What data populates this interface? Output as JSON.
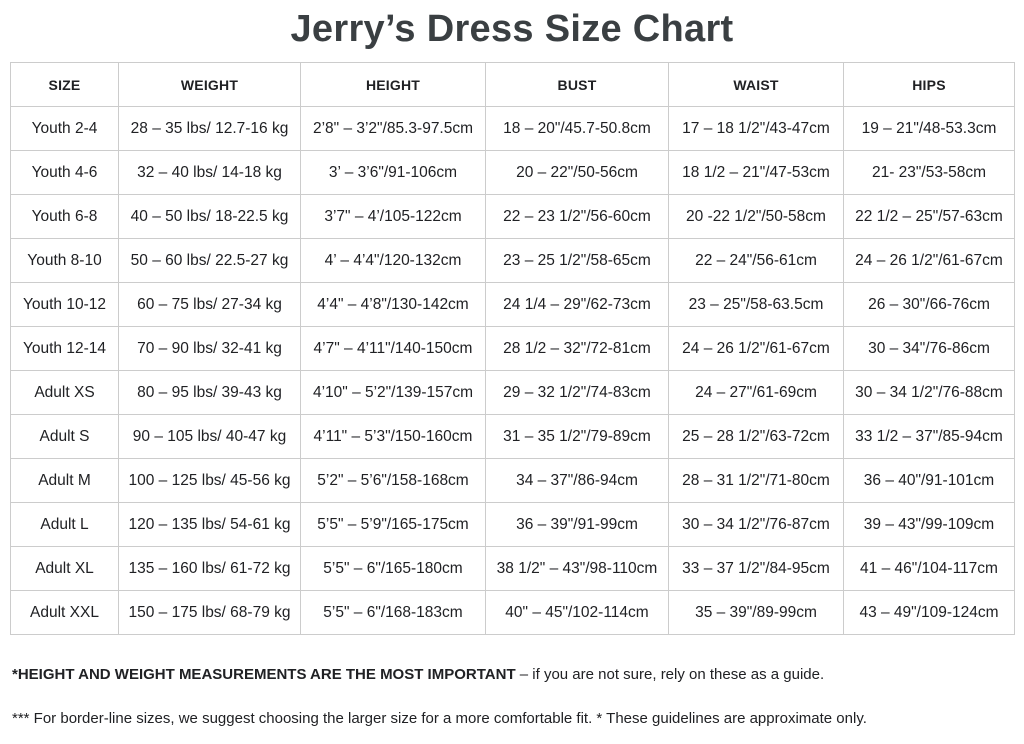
{
  "title": "Jerry’s Dress Size Chart",
  "table": {
    "headers": [
      "SIZE",
      "WEIGHT",
      "HEIGHT",
      "BUST",
      "WAIST",
      "HIPS"
    ],
    "rows": [
      [
        "Youth 2-4",
        "28 – 35 lbs/ 12.7-16 kg",
        "2’8\" – 3’2\"/85.3-97.5cm",
        "18 – 20\"/45.7-50.8cm",
        "17 – 18 1/2\"/43-47cm",
        "19 – 21\"/48-53.3cm"
      ],
      [
        "Youth 4-6",
        "32 – 40 lbs/ 14-18 kg",
        "3’ – 3’6\"/91-106cm",
        "20 – 22\"/50-56cm",
        "18 1/2 – 21\"/47-53cm",
        "21- 23\"/53-58cm"
      ],
      [
        "Youth 6-8",
        "40 – 50 lbs/ 18-22.5 kg",
        "3’7\" – 4’/105-122cm",
        "22 – 23 1/2\"/56-60cm",
        "20 -22 1/2\"/50-58cm",
        "22 1/2 – 25\"/57-63cm"
      ],
      [
        "Youth 8-10",
        "50 – 60 lbs/ 22.5-27 kg",
        "4’ – 4’4\"/120-132cm",
        "23 – 25 1/2\"/58-65cm",
        "22 – 24\"/56-61cm",
        "24 – 26 1/2\"/61-67cm"
      ],
      [
        "Youth 10-12",
        "60 – 75 lbs/ 27-34 kg",
        "4’4\" – 4’8\"/130-142cm",
        "24 1/4 – 29\"/62-73cm",
        "23 – 25\"/58-63.5cm",
        "26 – 30\"/66-76cm"
      ],
      [
        "Youth 12-14",
        "70 – 90 lbs/ 32-41 kg",
        "4’7\" – 4’11\"/140-150cm",
        "28 1/2 – 32\"/72-81cm",
        "24 – 26 1/2\"/61-67cm",
        "30 – 34\"/76-86cm"
      ],
      [
        "Adult XS",
        "80 – 95 lbs/ 39-43 kg",
        "4’10\" – 5’2\"/139-157cm",
        "29 – 32 1/2\"/74-83cm",
        "24 – 27\"/61-69cm",
        "30 – 34 1/2\"/76-88cm"
      ],
      [
        "Adult S",
        "90 – 105 lbs/ 40-47 kg",
        "4’11\" – 5’3\"/150-160cm",
        "31 – 35 1/2\"/79-89cm",
        "25 – 28 1/2\"/63-72cm",
        "33 1/2 – 37\"/85-94cm"
      ],
      [
        "Adult M",
        "100 – 125 lbs/ 45-56 kg",
        "5’2\" – 5’6\"/158-168cm",
        "34 – 37\"/86-94cm",
        "28 – 31 1/2\"/71-80cm",
        "36 – 40\"/91-101cm"
      ],
      [
        "Adult L",
        "120 – 135 lbs/ 54-61 kg",
        "5’5\" – 5’9\"/165-175cm",
        "36 – 39\"/91-99cm",
        "30 – 34 1/2\"/76-87cm",
        "39 – 43\"/99-109cm"
      ],
      [
        "Adult XL",
        "135 – 160 lbs/ 61-72 kg",
        "5’5\" – 6\"/165-180cm",
        "38 1/2\" – 43\"/98-110cm",
        "33 – 37 1/2\"/84-95cm",
        "41 – 46\"/104-117cm"
      ],
      [
        "Adult XXL",
        "150 – 175 lbs/ 68-79 kg",
        "5’5\" – 6\"/168-183cm",
        "40\" – 45\"/102-114cm",
        "35 – 39\"/89-99cm",
        "43 – 49\"/109-124cm"
      ]
    ]
  },
  "footnotes": {
    "note1_bold": "*HEIGHT AND WEIGHT MEASUREMENTS ARE THE MOST IMPORTANT",
    "note1_rest": " – if you are not sure, rely on these as a guide.",
    "note2": "*** For border-line sizes, we suggest choosing the larger size for a more comfortable fit. * These guidelines are approximate only."
  },
  "colors": {
    "text": "#202124",
    "title": "#3a3f42",
    "border": "#cccccc",
    "background": "#ffffff"
  }
}
